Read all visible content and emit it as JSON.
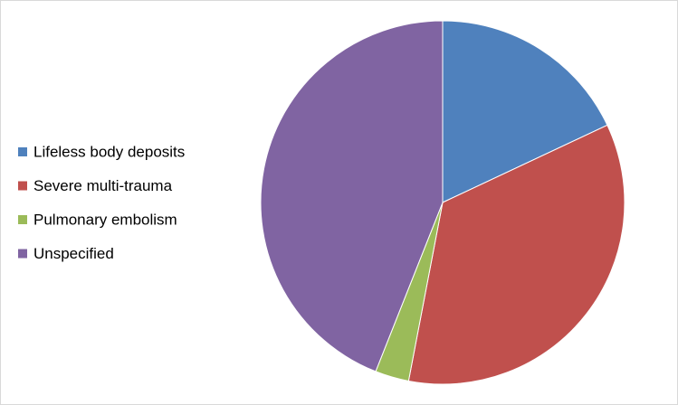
{
  "chart_data": {
    "type": "pie",
    "categories": [
      "Lifeless body deposits",
      "Severe multi-trauma",
      "Pulmonary embolism",
      "Unspecified"
    ],
    "values": [
      18,
      35,
      3,
      44
    ],
    "colors": [
      "#4f81bd",
      "#c0504d",
      "#9bbb59",
      "#8064a2"
    ],
    "start_angle": 0,
    "direction": "clockwise",
    "legend": "left"
  }
}
